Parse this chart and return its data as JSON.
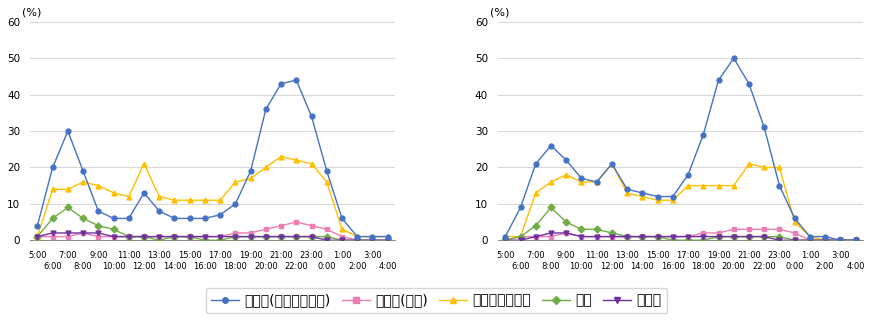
{
  "x_labels_top": [
    "5:00",
    "7:00",
    "9:00",
    "11:00",
    "13:00",
    "15:00",
    "17:00",
    "19:00",
    "21:00",
    "23:00",
    "1:00",
    "3:00"
  ],
  "x_labels_bot": [
    "6:00",
    "8:00",
    "10:00",
    "12:00",
    "14:00",
    "16:00",
    "18:00",
    "20:00",
    "22:00",
    "0:00",
    "2:00",
    "4:00"
  ],
  "x_top_pos": [
    0,
    2,
    4,
    6,
    8,
    10,
    12,
    14,
    16,
    18,
    20,
    22
  ],
  "x_bot_pos": [
    1,
    3,
    5,
    7,
    9,
    11,
    13,
    15,
    17,
    19,
    21,
    23
  ],
  "left": {
    "tv_realtime": [
      4,
      20,
      30,
      19,
      8,
      6,
      6,
      13,
      8,
      6,
      6,
      6,
      7,
      10,
      19,
      36,
      43,
      44,
      34,
      19,
      6,
      1,
      1,
      1
    ],
    "tv_recorded": [
      1,
      1,
      1,
      2,
      1,
      1,
      1,
      1,
      1,
      1,
      1,
      1,
      1,
      2,
      2,
      3,
      4,
      5,
      4,
      3,
      1,
      0,
      0,
      0
    ],
    "internet": [
      1,
      14,
      14,
      16,
      15,
      13,
      12,
      21,
      12,
      11,
      11,
      11,
      11,
      16,
      17,
      20,
      23,
      22,
      21,
      16,
      3,
      1,
      1,
      1
    ],
    "newspaper": [
      1,
      6,
      9,
      6,
      4,
      3,
      1,
      1,
      0,
      1,
      1,
      0,
      0,
      1,
      1,
      1,
      1,
      1,
      1,
      1,
      0,
      0,
      0,
      0
    ],
    "radio": [
      1,
      2,
      2,
      2,
      2,
      1,
      1,
      1,
      1,
      1,
      1,
      1,
      1,
      1,
      1,
      1,
      1,
      1,
      1,
      0,
      0,
      0,
      0,
      0
    ]
  },
  "right": {
    "tv_realtime": [
      1,
      9,
      21,
      26,
      22,
      17,
      16,
      21,
      14,
      13,
      12,
      12,
      18,
      29,
      44,
      50,
      43,
      31,
      15,
      6,
      1,
      1,
      0,
      0
    ],
    "tv_recorded": [
      0,
      1,
      1,
      1,
      2,
      1,
      1,
      1,
      1,
      1,
      1,
      1,
      1,
      2,
      2,
      3,
      3,
      3,
      3,
      2,
      0,
      0,
      0,
      0
    ],
    "internet": [
      1,
      1,
      13,
      16,
      18,
      16,
      16,
      21,
      13,
      12,
      11,
      11,
      15,
      15,
      15,
      15,
      21,
      20,
      20,
      5,
      1,
      0,
      0,
      0
    ],
    "newspaper": [
      0,
      1,
      4,
      9,
      5,
      3,
      3,
      2,
      1,
      1,
      1,
      0,
      0,
      0,
      1,
      1,
      1,
      1,
      1,
      0,
      0,
      0,
      0,
      0
    ],
    "radio": [
      0,
      0,
      1,
      2,
      2,
      1,
      1,
      1,
      1,
      1,
      1,
      1,
      1,
      1,
      1,
      1,
      1,
      1,
      0,
      0,
      0,
      0,
      0,
      0
    ]
  },
  "ylim": [
    0,
    60
  ],
  "yticks": [
    0,
    10,
    20,
    30,
    40,
    50,
    60
  ],
  "colors": {
    "tv_realtime": "#4472C4",
    "tv_recorded": "#ED7DB4",
    "internet": "#FFC000",
    "newspaper": "#70AD47",
    "radio": "#7030A0"
  },
  "legend_labels": [
    "テレビ(リアルタイム)",
    "テレビ(録画)",
    "インターネット",
    "新聞",
    "ラジオ"
  ],
  "ylabel": "(%)"
}
